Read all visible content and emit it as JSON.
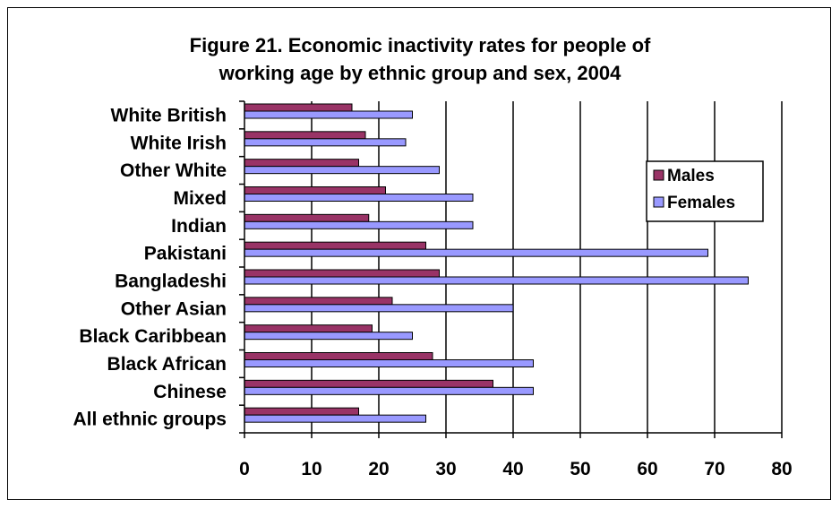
{
  "chart_data": {
    "type": "bar",
    "orientation": "horizontal",
    "title_line1": "Figure 21. Economic inactivity rates for people of",
    "title_line2": "working age by ethnic group and sex, 2004",
    "categories": [
      "White British",
      "White Irish",
      "Other White",
      "Mixed",
      "Indian",
      "Pakistani",
      "Bangladeshi",
      "Other Asian",
      "Black Caribbean",
      "Black African",
      "Chinese",
      "All ethnic groups"
    ],
    "series": [
      {
        "name": "Males",
        "color": "#993366",
        "values": [
          16,
          18,
          17,
          21,
          18.5,
          27,
          29,
          22,
          19,
          28,
          37,
          17
        ]
      },
      {
        "name": "Females",
        "color": "#9999FF",
        "values": [
          25,
          24,
          29,
          34,
          34,
          69,
          75,
          40,
          25,
          43,
          43,
          27
        ]
      }
    ],
    "xlim": [
      0,
      80
    ],
    "xticks": [
      0,
      10,
      20,
      30,
      40,
      50,
      60,
      70,
      80
    ],
    "grid": "vertical major gridlines",
    "legend_position": "right"
  }
}
